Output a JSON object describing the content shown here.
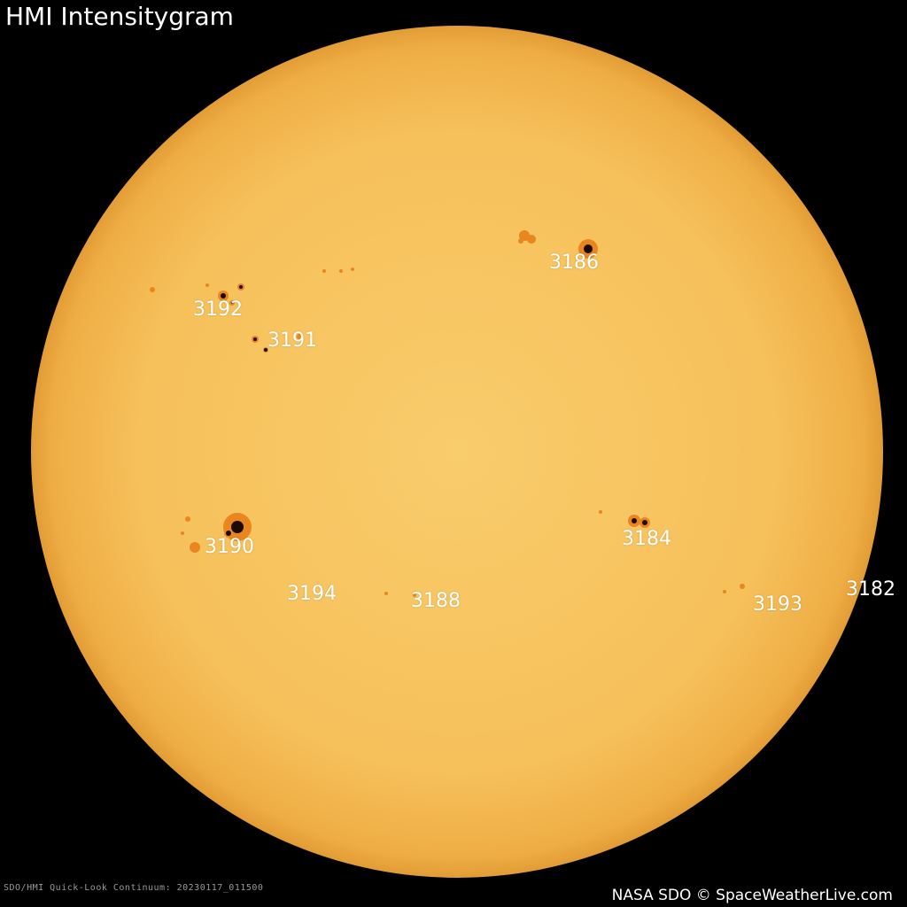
{
  "title": "HMI Intensitygram",
  "caption": "SDO/HMI Quick-Look Continuum: 20230117_011500",
  "credit": "NASA SDO © SpaceWeatherLive.com",
  "colors": {
    "background": "#000000",
    "disk": "#f7c45f",
    "limb": "#e9a43a",
    "penumbra": "#e9861f",
    "umbra": "#1a0a00"
  },
  "regions": [
    {
      "label": "3186"
    },
    {
      "label": "3192"
    },
    {
      "label": "3191"
    },
    {
      "label": "3190"
    },
    {
      "label": "3194"
    },
    {
      "label": "3188"
    },
    {
      "label": "3184"
    },
    {
      "label": "3193"
    },
    {
      "label": "3182"
    }
  ]
}
